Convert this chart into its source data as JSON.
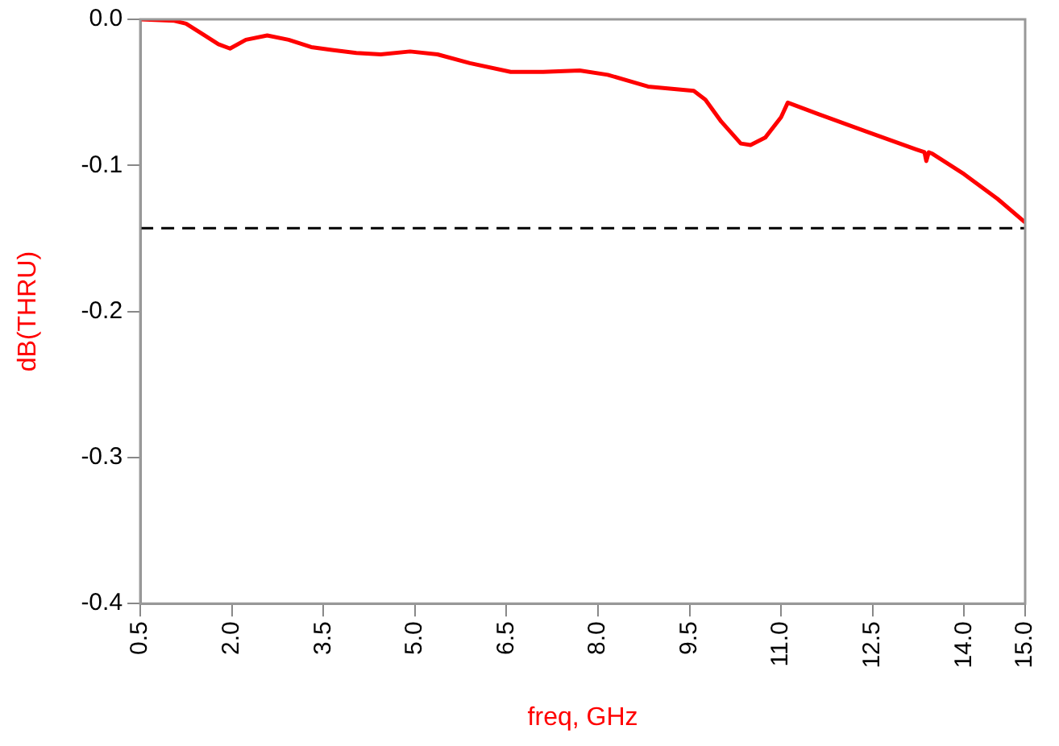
{
  "chart_data": {
    "type": "line",
    "xlabel": "freq, GHz",
    "ylabel": "dB(THRU)",
    "x": [
      0.5,
      1.06,
      1.25,
      1.78,
      1.97,
      2.23,
      2.58,
      2.93,
      3.3,
      3.64,
      4.04,
      4.44,
      4.92,
      5.37,
      5.9,
      6.57,
      7.1,
      7.7,
      8.16,
      8.82,
      9.57,
      9.76,
      10.02,
      10.34,
      10.5,
      10.74,
      11.0,
      11.11,
      11.62,
      12.41,
      13.21,
      13.35,
      13.38,
      13.42,
      13.48,
      14.0,
      14.55,
      15.0
    ],
    "series": [
      {
        "color": "#ff0000",
        "values": [
          0,
          -0.001,
          -0.003,
          -0.017,
          -0.02,
          -0.014,
          -0.011,
          -0.014,
          -0.019,
          -0.021,
          -0.023,
          -0.024,
          -0.022,
          -0.024,
          -0.03,
          -0.036,
          -0.036,
          -0.035,
          -0.038,
          -0.046,
          -0.049,
          -0.055,
          -0.07,
          -0.085,
          -0.086,
          -0.081,
          -0.067,
          -0.057,
          -0.065,
          -0.077,
          -0.089,
          -0.091,
          -0.097,
          -0.091,
          -0.092,
          -0.106,
          -0.123,
          -0.139
        ]
      }
    ],
    "xlim": [
      0.5,
      15.0
    ],
    "xticks": [
      {
        "value": 0.5,
        "label": "0.5"
      },
      {
        "value": 2,
        "label": "2.0"
      },
      {
        "value": 3.5,
        "label": "3.5"
      },
      {
        "value": 5,
        "label": "5.0"
      },
      {
        "value": 6.5,
        "label": "6.5"
      },
      {
        "value": 8,
        "label": "8.0"
      },
      {
        "value": 9.5,
        "label": "9.5"
      },
      {
        "value": 11,
        "label": "11.0"
      },
      {
        "value": 12.5,
        "label": "12.5"
      },
      {
        "value": 14,
        "label": "14.0"
      },
      {
        "value": 15,
        "label": "15.0"
      }
    ],
    "ylim": [
      -0.4,
      0
    ],
    "yticks": [
      {
        "value": -0.4,
        "label": "-0.4"
      },
      {
        "value": -0.3,
        "label": "-0.3"
      },
      {
        "value": -0.2,
        "label": "-0.2"
      },
      {
        "value": -0.1,
        "label": "-0.1"
      },
      {
        "value": 0,
        "label": "0.0"
      }
    ],
    "ref_lines": [
      {
        "axis": "y",
        "value": -0.143,
        "color": "#000000",
        "line_style": "dashed"
      }
    ],
    "grid": false,
    "legend": false,
    "marker": "none",
    "line_style": "solid"
  }
}
